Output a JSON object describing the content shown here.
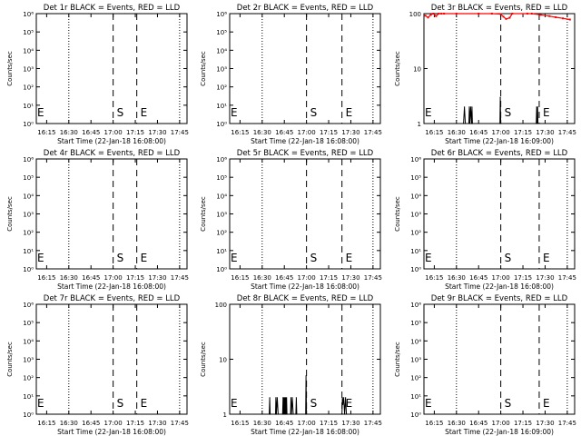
{
  "chart_data": [
    {
      "type": "line",
      "title": "Det 1r BLACK = Events, RED = LLD",
      "xlabel": "Start Time (22-Jan-18 16:08:00)",
      "ylabel": "Counts/sec",
      "yscale": "log",
      "ylim": [
        1,
        1000000
      ],
      "ytick_labels": [
        "10⁰",
        "10¹",
        "10²",
        "10³",
        "10⁴",
        "10⁵",
        "10⁶"
      ],
      "xlim": [
        "16:08",
        "17:50"
      ],
      "xtick_labels": [
        "16:15",
        "16:30",
        "16:45",
        "17:00",
        "17:15",
        "17:30",
        "17:45"
      ],
      "dotted_lines": [
        "16:30",
        "17:45"
      ],
      "dashed_lines": [
        {
          "x": "17:00",
          "label": "S"
        },
        {
          "x": "17:16",
          "label": "E"
        }
      ],
      "corner_label": "E",
      "events": [],
      "lld": []
    },
    {
      "type": "line",
      "title": "Det 2r BLACK = Events, RED = LLD",
      "xlabel": "Start Time (22-Jan-18 16:08:00)",
      "ylabel": "Counts/sec",
      "yscale": "log",
      "ylim": [
        1,
        1000000
      ],
      "ytick_labels": [
        "10⁰",
        "10¹",
        "10²",
        "10³",
        "10⁴",
        "10⁵",
        "10⁶"
      ],
      "xlim": [
        "16:08",
        "17:50"
      ],
      "xtick_labels": [
        "16:15",
        "16:30",
        "16:45",
        "17:00",
        "17:15",
        "17:30",
        "17:45"
      ],
      "dotted_lines": [
        "16:30",
        "17:45"
      ],
      "dashed_lines": [
        {
          "x": "17:00",
          "label": "S"
        },
        {
          "x": "17:24",
          "label": "E"
        }
      ],
      "corner_label": "E",
      "events": [],
      "lld": []
    },
    {
      "type": "line",
      "title": "Det 3r BLACK = Events, RED = LLD",
      "xlabel": "Start Time (22-Jan-18 16:09:00)",
      "ylabel": "Counts/sec",
      "yscale": "log",
      "ylim": [
        1,
        100
      ],
      "ytick_labels": [
        "1",
        "10",
        "100"
      ],
      "xlim": [
        "16:08",
        "17:50"
      ],
      "xtick_labels": [
        "16:15",
        "16:30",
        "16:45",
        "17:00",
        "17:15",
        "17:30",
        "17:45"
      ],
      "dotted_lines": [
        "16:30",
        "17:45"
      ],
      "dashed_lines": [
        {
          "x": "17:00",
          "label": "S"
        },
        {
          "x": "17:26",
          "label": "E"
        }
      ],
      "corner_label": "E",
      "events": [
        {
          "t": 16.58,
          "v": 1
        },
        {
          "t": 16.59,
          "v": 2
        },
        {
          "t": 16.6,
          "v": 1
        },
        {
          "t": 16.64,
          "v": 1
        },
        {
          "t": 16.645,
          "v": 2
        },
        {
          "t": 16.65,
          "v": 1
        },
        {
          "t": 16.66,
          "v": 2
        },
        {
          "t": 16.67,
          "v": 1
        },
        {
          "t": 16.675,
          "v": 2
        },
        {
          "t": 16.68,
          "v": 1
        },
        {
          "t": 16.99,
          "v": 1
        },
        {
          "t": 16.995,
          "v": 3
        },
        {
          "t": 17.0,
          "v": 1
        },
        {
          "t": 17.4,
          "v": 1
        },
        {
          "t": 17.405,
          "v": 2
        },
        {
          "t": 17.41,
          "v": 1
        },
        {
          "t": 17.415,
          "v": 2
        },
        {
          "t": 17.42,
          "v": 1
        }
      ],
      "lld": [
        {
          "t": 16.15,
          "v": 92
        },
        {
          "t": 16.18,
          "v": 85
        },
        {
          "t": 16.21,
          "v": 95
        },
        {
          "t": 16.24,
          "v": 100
        },
        {
          "t": 16.27,
          "v": 90
        },
        {
          "t": 16.3,
          "v": 100
        },
        {
          "t": 16.33,
          "v": 100
        },
        {
          "t": 16.36,
          "v": 100
        },
        {
          "t": 16.5,
          "v": 100
        },
        {
          "t": 16.75,
          "v": 100
        },
        {
          "t": 16.9,
          "v": 100
        },
        {
          "t": 17.0,
          "v": 98
        },
        {
          "t": 17.03,
          "v": 88
        },
        {
          "t": 17.06,
          "v": 80
        },
        {
          "t": 17.1,
          "v": 84
        },
        {
          "t": 17.13,
          "v": 100
        },
        {
          "t": 17.3,
          "v": 100
        },
        {
          "t": 17.35,
          "v": 100
        },
        {
          "t": 17.45,
          "v": 95
        },
        {
          "t": 17.55,
          "v": 90
        },
        {
          "t": 17.62,
          "v": 86
        },
        {
          "t": 17.7,
          "v": 82
        },
        {
          "t": 17.78,
          "v": 78
        }
      ]
    },
    {
      "type": "line",
      "title": "Det 4r BLACK = Events, RED = LLD",
      "xlabel": "Start Time (22-Jan-18 16:08:00)",
      "ylabel": "Counts/sec",
      "yscale": "log",
      "ylim": [
        1,
        1000000
      ],
      "ytick_labels": [
        "10⁰",
        "10¹",
        "10²",
        "10³",
        "10⁴",
        "10⁵",
        "10⁶"
      ],
      "xlim": [
        "16:08",
        "17:50"
      ],
      "xtick_labels": [
        "16:15",
        "16:30",
        "16:45",
        "17:00",
        "17:15",
        "17:30",
        "17:45"
      ],
      "dotted_lines": [
        "16:30",
        "17:45"
      ],
      "dashed_lines": [
        {
          "x": "17:00",
          "label": "S"
        },
        {
          "x": "17:16",
          "label": "E"
        }
      ],
      "corner_label": "E",
      "events": [],
      "lld": []
    },
    {
      "type": "line",
      "title": "Det 5r BLACK = Events, RED = LLD",
      "xlabel": "Start Time (22-Jan-18 16:08:00)",
      "ylabel": "Counts/sec",
      "yscale": "log",
      "ylim": [
        1,
        1000000
      ],
      "ytick_labels": [
        "10⁰",
        "10¹",
        "10²",
        "10³",
        "10⁴",
        "10⁵",
        "10⁶"
      ],
      "xlim": [
        "16:08",
        "17:50"
      ],
      "xtick_labels": [
        "16:15",
        "16:30",
        "16:45",
        "17:00",
        "17:15",
        "17:30",
        "17:45"
      ],
      "dotted_lines": [
        "16:30",
        "17:45"
      ],
      "dashed_lines": [
        {
          "x": "17:00",
          "label": "S"
        },
        {
          "x": "17:24",
          "label": "E"
        }
      ],
      "corner_label": "E",
      "events": [],
      "lld": []
    },
    {
      "type": "line",
      "title": "Det 6r BLACK = Events, RED = LLD",
      "xlabel": "Start Time (22-Jan-18 16:08:00)",
      "ylabel": "Counts/sec",
      "yscale": "log",
      "ylim": [
        1,
        1000000
      ],
      "ytick_labels": [
        "10⁰",
        "10¹",
        "10²",
        "10³",
        "10⁴",
        "10⁵",
        "10⁶"
      ],
      "xlim": [
        "16:08",
        "17:50"
      ],
      "xtick_labels": [
        "16:15",
        "16:30",
        "16:45",
        "17:00",
        "17:15",
        "17:30",
        "17:45"
      ],
      "dotted_lines": [
        "16:30",
        "17:45"
      ],
      "dashed_lines": [
        {
          "x": "17:00",
          "label": "S"
        },
        {
          "x": "17:26",
          "label": "E"
        }
      ],
      "corner_label": "E",
      "events": [],
      "lld": []
    },
    {
      "type": "line",
      "title": "Det 7r BLACK = Events, RED = LLD",
      "xlabel": "Start Time (22-Jan-18 16:08:00)",
      "ylabel": "Counts/sec",
      "yscale": "log",
      "ylim": [
        1,
        1000000
      ],
      "ytick_labels": [
        "10⁰",
        "10¹",
        "10²",
        "10³",
        "10⁴",
        "10⁵",
        "10⁶"
      ],
      "xlim": [
        "16:08",
        "17:50"
      ],
      "xtick_labels": [
        "16:15",
        "16:30",
        "16:45",
        "17:00",
        "17:15",
        "17:30",
        "17:45"
      ],
      "dotted_lines": [
        "16:30",
        "17:45"
      ],
      "dashed_lines": [
        {
          "x": "17:00",
          "label": "S"
        },
        {
          "x": "17:16",
          "label": "E"
        }
      ],
      "corner_label": "E",
      "events": [],
      "lld": []
    },
    {
      "type": "line",
      "title": "Det 8r BLACK = Events, RED = LLD",
      "xlabel": "Start Time (22-Jan-18 16:08:00)",
      "ylabel": "Counts/sec",
      "yscale": "log",
      "ylim": [
        1,
        100
      ],
      "ytick_labels": [
        "1",
        "10",
        "100"
      ],
      "xlim": [
        "16:08",
        "17:50"
      ],
      "xtick_labels": [
        "16:15",
        "16:30",
        "16:45",
        "17:00",
        "17:15",
        "17:30",
        "17:45"
      ],
      "dotted_lines": [
        "16:30",
        "17:45"
      ],
      "dashed_lines": [
        {
          "x": "17:00",
          "label": "S"
        },
        {
          "x": "17:24",
          "label": "E"
        }
      ],
      "corner_label": "E",
      "events": [
        {
          "t": 16.58,
          "v": 1
        },
        {
          "t": 16.585,
          "v": 2
        },
        {
          "t": 16.59,
          "v": 1
        },
        {
          "t": 16.65,
          "v": 1
        },
        {
          "t": 16.655,
          "v": 2
        },
        {
          "t": 16.66,
          "v": 1
        },
        {
          "t": 16.67,
          "v": 2
        },
        {
          "t": 16.68,
          "v": 1
        },
        {
          "t": 16.73,
          "v": 1
        },
        {
          "t": 16.735,
          "v": 2
        },
        {
          "t": 16.74,
          "v": 1
        },
        {
          "t": 16.745,
          "v": 2
        },
        {
          "t": 16.75,
          "v": 1
        },
        {
          "t": 16.755,
          "v": 2
        },
        {
          "t": 16.76,
          "v": 1
        },
        {
          "t": 16.765,
          "v": 2
        },
        {
          "t": 16.77,
          "v": 1
        },
        {
          "t": 16.775,
          "v": 2
        },
        {
          "t": 16.78,
          "v": 1
        },
        {
          "t": 16.82,
          "v": 1
        },
        {
          "t": 16.825,
          "v": 2
        },
        {
          "t": 16.83,
          "v": 1
        },
        {
          "t": 16.84,
          "v": 2
        },
        {
          "t": 16.85,
          "v": 1
        },
        {
          "t": 16.88,
          "v": 1
        },
        {
          "t": 16.885,
          "v": 2
        },
        {
          "t": 16.89,
          "v": 1
        },
        {
          "t": 16.99,
          "v": 1
        },
        {
          "t": 16.995,
          "v": 5
        },
        {
          "t": 17.0,
          "v": 1
        },
        {
          "t": 17.4,
          "v": 1
        },
        {
          "t": 17.405,
          "v": 2
        },
        {
          "t": 17.41,
          "v": 1.5
        },
        {
          "t": 17.42,
          "v": 2
        },
        {
          "t": 17.43,
          "v": 1
        },
        {
          "t": 17.44,
          "v": 2
        },
        {
          "t": 17.45,
          "v": 1
        }
      ],
      "lld": []
    },
    {
      "type": "line",
      "title": "Det 9r BLACK = Events, RED = LLD",
      "xlabel": "Start Time (22-Jan-18 16:09:00)",
      "ylabel": "Counts/sec",
      "yscale": "log",
      "ylim": [
        1,
        1000000
      ],
      "ytick_labels": [
        "10⁰",
        "10¹",
        "10²",
        "10³",
        "10⁴",
        "10⁵",
        "10⁶"
      ],
      "xlim": [
        "16:08",
        "17:50"
      ],
      "xtick_labels": [
        "16:15",
        "16:30",
        "16:45",
        "17:00",
        "17:15",
        "17:30",
        "17:45"
      ],
      "dotted_lines": [
        "16:30",
        "17:45"
      ],
      "dashed_lines": [
        {
          "x": "17:00",
          "label": "S"
        },
        {
          "x": "17:26",
          "label": "E"
        }
      ],
      "corner_label": "E",
      "events": [],
      "lld": []
    }
  ],
  "colors": {
    "events": "#000000",
    "lld": "#ff0000",
    "axes": "#000000",
    "background": "#ffffff"
  }
}
